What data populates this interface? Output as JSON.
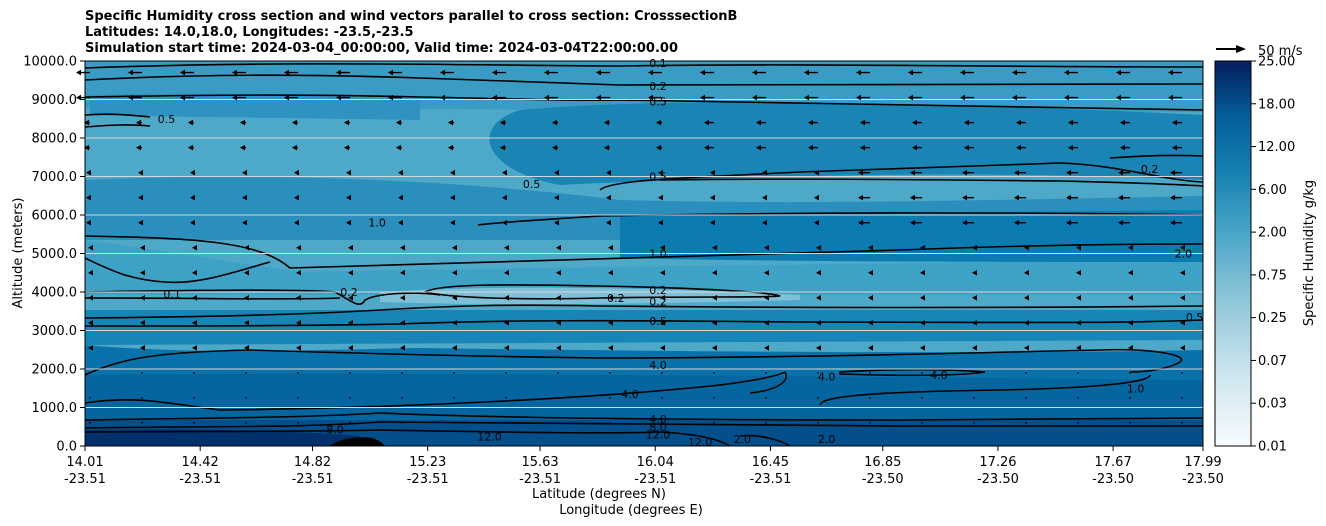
{
  "chart_data": {
    "type": "contourf",
    "title_lines": [
      "Specific Humidity cross section and wind vectors parallel to cross section: CrosssectionB",
      "Latitudes: 14.0,18.0, Longitudes: -23.5,-23.5",
      "Simulation start time: 2024-03-04_00:00:00, Valid time: 2024-03-04T22:00:00.00"
    ],
    "ylabel": "Altitude (meters)",
    "xlabel_lat": "Latitude (degrees N)",
    "xlabel_lon": "Longitude (degrees E)",
    "ylim": [
      0,
      10000
    ],
    "yticks": [
      "0.0",
      "1000.0",
      "2000.0",
      "3000.0",
      "4000.0",
      "5000.0",
      "6000.0",
      "7000.0",
      "8000.0",
      "9000.0",
      "10000.0"
    ],
    "xticks": [
      {
        "lat": "14.01",
        "lon": "-23.51"
      },
      {
        "lat": "14.42",
        "lon": "-23.51"
      },
      {
        "lat": "14.82",
        "lon": "-23.51"
      },
      {
        "lat": "15.23",
        "lon": "-23.51"
      },
      {
        "lat": "15.63",
        "lon": "-23.51"
      },
      {
        "lat": "16.04",
        "lon": "-23.51"
      },
      {
        "lat": "16.45",
        "lon": "-23.51"
      },
      {
        "lat": "16.85",
        "lon": "-23.50"
      },
      {
        "lat": "17.26",
        "lon": "-23.50"
      },
      {
        "lat": "17.67",
        "lon": "-23.50"
      },
      {
        "lat": "17.99",
        "lon": "-23.50"
      }
    ],
    "grid": "horizontal",
    "colorbar": {
      "label": "Specific Humidity g/kg",
      "ticks": [
        "0.01",
        "0.03",
        "0.07",
        "0.25",
        "0.75",
        "2.00",
        "6.00",
        "12.00",
        "18.00",
        "25.00"
      ]
    },
    "quiver_key": "50 m/s",
    "contour_labels": [
      {
        "text": "0.1",
        "lat": 16.05,
        "alt": 9950
      },
      {
        "text": "0.2",
        "lat": 16.05,
        "alt": 9350
      },
      {
        "text": "0.5",
        "lat": 16.05,
        "alt": 8950
      },
      {
        "text": "0.5",
        "lat": 16.05,
        "alt": 7000
      },
      {
        "text": "0.5",
        "lat": 14.3,
        "alt": 8500
      },
      {
        "text": "0.5",
        "lat": 15.6,
        "alt": 6800
      },
      {
        "text": "0.2",
        "lat": 17.8,
        "alt": 7200
      },
      {
        "text": "1.0",
        "lat": 15.05,
        "alt": 5800
      },
      {
        "text": "1.0",
        "lat": 16.05,
        "alt": 5000
      },
      {
        "text": "2.0",
        "lat": 17.92,
        "alt": 5000
      },
      {
        "text": "0.1",
        "lat": 14.32,
        "alt": 3950
      },
      {
        "text": "0.2",
        "lat": 14.95,
        "alt": 4000
      },
      {
        "text": "0.2",
        "lat": 15.9,
        "alt": 3850
      },
      {
        "text": "0.2",
        "lat": 16.05,
        "alt": 4050
      },
      {
        "text": "0.2",
        "lat": 16.05,
        "alt": 3750
      },
      {
        "text": "0.5",
        "lat": 16.05,
        "alt": 3250
      },
      {
        "text": "0.5",
        "lat": 17.96,
        "alt": 3350
      },
      {
        "text": "4.0",
        "lat": 16.05,
        "alt": 2100
      },
      {
        "text": "4.0",
        "lat": 15.95,
        "alt": 1350
      },
      {
        "text": "4.0",
        "lat": 16.65,
        "alt": 1800
      },
      {
        "text": "4.0",
        "lat": 17.05,
        "alt": 1850
      },
      {
        "text": "1.0",
        "lat": 17.75,
        "alt": 1500
      },
      {
        "text": "4.0",
        "lat": 16.05,
        "alt": 700
      },
      {
        "text": "8.0",
        "lat": 16.05,
        "alt": 500
      },
      {
        "text": "8.0",
        "lat": 14.9,
        "alt": 430
      },
      {
        "text": "12.0",
        "lat": 16.05,
        "alt": 300
      },
      {
        "text": "12.0",
        "lat": 15.45,
        "alt": 250
      },
      {
        "text": "12.0",
        "lat": 16.2,
        "alt": 100
      },
      {
        "text": "2.0",
        "lat": 16.35,
        "alt": 180
      },
      {
        "text": "2.0",
        "lat": 16.65,
        "alt": 180
      }
    ]
  }
}
